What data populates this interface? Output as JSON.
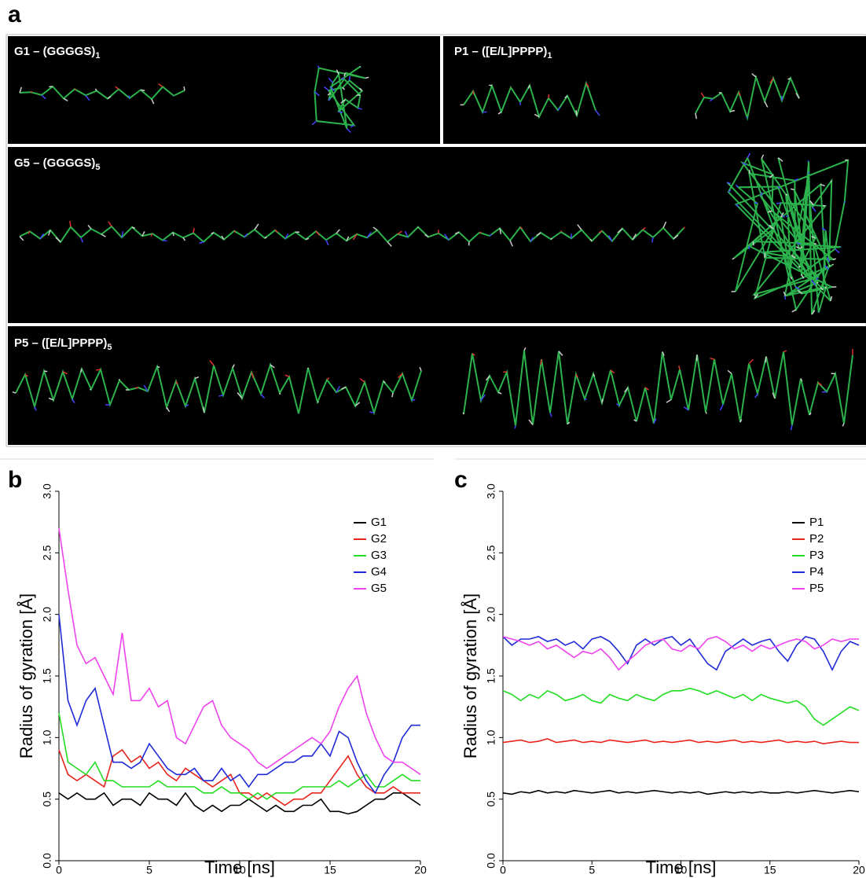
{
  "panel_a": {
    "label": "a",
    "images": [
      {
        "title": "G1 – (GGGGS)",
        "subscript": "1"
      },
      {
        "title": "P1 – ([E/L]PPPP)",
        "subscript": "1"
      },
      {
        "title": "G5 – (GGGGS)",
        "subscript": "5"
      },
      {
        "title": "P5 – ([E/L]PPPP)",
        "subscript": "5"
      }
    ]
  },
  "chart_data": [
    {
      "type": "line",
      "panel_label": "b",
      "xlabel": "Time [ns]",
      "ylabel": "Radius of gyration [Å]",
      "xlim": [
        0,
        20
      ],
      "xticks": [
        0,
        5,
        10,
        15,
        20
      ],
      "ylim": [
        0,
        3
      ],
      "yticks": [
        {
          "value": 0,
          "label": "0.0"
        },
        {
          "value": 0.5,
          "label": "0.5"
        },
        {
          "value": 1,
          "label": "1.0"
        },
        {
          "value": 1.5,
          "label": "1.5"
        },
        {
          "value": 2,
          "label": "2.0"
        },
        {
          "value": 2.5,
          "label": "2.5"
        },
        {
          "value": 3,
          "label": "3.0"
        }
      ],
      "legend": "upper right",
      "x": [
        0,
        0.5,
        1,
        1.5,
        2,
        2.5,
        3,
        3.5,
        4,
        4.5,
        5,
        5.5,
        6,
        6.5,
        7,
        7.5,
        8,
        8.5,
        9,
        9.5,
        10,
        10.5,
        11,
        11.5,
        12,
        12.5,
        13,
        13.5,
        14,
        14.5,
        15,
        15.5,
        16,
        16.5,
        17,
        17.5,
        18,
        18.5,
        19,
        19.5,
        20
      ],
      "series": [
        {
          "name": "G1",
          "color": "#000000",
          "values": [
            0.55,
            0.5,
            0.55,
            0.5,
            0.5,
            0.55,
            0.45,
            0.5,
            0.5,
            0.45,
            0.55,
            0.5,
            0.5,
            0.45,
            0.55,
            0.45,
            0.4,
            0.45,
            0.4,
            0.45,
            0.45,
            0.5,
            0.45,
            0.4,
            0.45,
            0.4,
            0.4,
            0.45,
            0.45,
            0.5,
            0.4,
            0.4,
            0.38,
            0.4,
            0.45,
            0.5,
            0.5,
            0.55,
            0.55,
            0.5,
            0.45
          ]
        },
        {
          "name": "G2",
          "color": "#e8241c",
          "values": [
            0.9,
            0.7,
            0.65,
            0.7,
            0.65,
            0.6,
            0.85,
            0.9,
            0.8,
            0.85,
            0.75,
            0.8,
            0.7,
            0.65,
            0.75,
            0.7,
            0.65,
            0.6,
            0.65,
            0.7,
            0.55,
            0.55,
            0.5,
            0.55,
            0.5,
            0.45,
            0.5,
            0.5,
            0.55,
            0.55,
            0.65,
            0.75,
            0.85,
            0.7,
            0.6,
            0.55,
            0.55,
            0.6,
            0.55,
            0.55,
            0.55
          ]
        },
        {
          "name": "G3",
          "color": "#22dd22",
          "values": [
            1.2,
            0.8,
            0.75,
            0.7,
            0.8,
            0.65,
            0.65,
            0.6,
            0.6,
            0.6,
            0.6,
            0.65,
            0.6,
            0.6,
            0.6,
            0.6,
            0.55,
            0.55,
            0.6,
            0.55,
            0.55,
            0.5,
            0.55,
            0.5,
            0.55,
            0.55,
            0.55,
            0.6,
            0.6,
            0.6,
            0.6,
            0.65,
            0.6,
            0.65,
            0.7,
            0.6,
            0.6,
            0.65,
            0.7,
            0.65,
            0.65
          ]
        },
        {
          "name": "G4",
          "color": "#1f2bd6",
          "values": [
            2.0,
            1.3,
            1.1,
            1.3,
            1.4,
            1.1,
            0.8,
            0.8,
            0.75,
            0.8,
            0.95,
            0.85,
            0.75,
            0.7,
            0.7,
            0.75,
            0.65,
            0.65,
            0.75,
            0.65,
            0.7,
            0.6,
            0.7,
            0.7,
            0.75,
            0.8,
            0.8,
            0.85,
            0.85,
            0.95,
            0.85,
            1.05,
            1.0,
            0.8,
            0.65,
            0.55,
            0.7,
            0.8,
            1.0,
            1.1,
            1.1
          ]
        },
        {
          "name": "G5",
          "color": "#ee44ee",
          "values": [
            2.7,
            2.2,
            1.75,
            1.6,
            1.65,
            1.5,
            1.35,
            1.85,
            1.3,
            1.3,
            1.4,
            1.25,
            1.3,
            1.0,
            0.95,
            1.1,
            1.25,
            1.3,
            1.1,
            1.0,
            0.95,
            0.9,
            0.8,
            0.75,
            0.8,
            0.85,
            0.9,
            0.95,
            1.0,
            0.95,
            1.05,
            1.25,
            1.4,
            1.5,
            1.2,
            1.0,
            0.85,
            0.8,
            0.8,
            0.75,
            0.7
          ]
        }
      ]
    },
    {
      "type": "line",
      "panel_label": "c",
      "xlabel": "Time [ns]",
      "ylabel": "Radius of gyration [Å]",
      "xlim": [
        0,
        20
      ],
      "xticks": [
        0,
        5,
        10,
        15,
        20
      ],
      "ylim": [
        0,
        3
      ],
      "yticks": [
        {
          "value": 0,
          "label": "0.0"
        },
        {
          "value": 0.5,
          "label": "0.5"
        },
        {
          "value": 1,
          "label": "1.0"
        },
        {
          "value": 1.5,
          "label": "1.5"
        },
        {
          "value": 2,
          "label": "2.0"
        },
        {
          "value": 2.5,
          "label": "2.5"
        },
        {
          "value": 3,
          "label": "3.0"
        }
      ],
      "legend": "upper right",
      "x": [
        0,
        0.5,
        1,
        1.5,
        2,
        2.5,
        3,
        3.5,
        4,
        4.5,
        5,
        5.5,
        6,
        6.5,
        7,
        7.5,
        8,
        8.5,
        9,
        9.5,
        10,
        10.5,
        11,
        11.5,
        12,
        12.5,
        13,
        13.5,
        14,
        14.5,
        15,
        15.5,
        16,
        16.5,
        17,
        17.5,
        18,
        18.5,
        19,
        19.5,
        20
      ],
      "series": [
        {
          "name": "P1",
          "color": "#000000",
          "values": [
            0.55,
            0.54,
            0.56,
            0.55,
            0.57,
            0.55,
            0.56,
            0.55,
            0.57,
            0.56,
            0.55,
            0.56,
            0.57,
            0.55,
            0.56,
            0.55,
            0.56,
            0.57,
            0.56,
            0.55,
            0.56,
            0.55,
            0.56,
            0.54,
            0.55,
            0.56,
            0.55,
            0.56,
            0.55,
            0.56,
            0.55,
            0.55,
            0.56,
            0.55,
            0.56,
            0.57,
            0.56,
            0.55,
            0.56,
            0.57,
            0.56
          ]
        },
        {
          "name": "P2",
          "color": "#e8241c",
          "values": [
            0.96,
            0.97,
            0.98,
            0.96,
            0.97,
            0.99,
            0.96,
            0.97,
            0.98,
            0.96,
            0.97,
            0.96,
            0.98,
            0.97,
            0.96,
            0.97,
            0.98,
            0.96,
            0.97,
            0.96,
            0.97,
            0.98,
            0.96,
            0.97,
            0.96,
            0.97,
            0.98,
            0.96,
            0.97,
            0.96,
            0.97,
            0.98,
            0.96,
            0.97,
            0.96,
            0.97,
            0.95,
            0.96,
            0.97,
            0.96,
            0.96
          ]
        },
        {
          "name": "P3",
          "color": "#22dd22",
          "values": [
            1.38,
            1.35,
            1.3,
            1.35,
            1.32,
            1.38,
            1.35,
            1.3,
            1.32,
            1.35,
            1.3,
            1.28,
            1.35,
            1.32,
            1.3,
            1.35,
            1.32,
            1.3,
            1.35,
            1.38,
            1.38,
            1.4,
            1.38,
            1.35,
            1.38,
            1.35,
            1.32,
            1.35,
            1.3,
            1.35,
            1.32,
            1.3,
            1.28,
            1.3,
            1.25,
            1.15,
            1.1,
            1.15,
            1.2,
            1.25,
            1.22
          ]
        },
        {
          "name": "P4",
          "color": "#1f2bd6",
          "values": [
            1.82,
            1.75,
            1.8,
            1.8,
            1.82,
            1.78,
            1.8,
            1.75,
            1.78,
            1.72,
            1.8,
            1.82,
            1.78,
            1.7,
            1.6,
            1.75,
            1.8,
            1.75,
            1.8,
            1.82,
            1.75,
            1.8,
            1.7,
            1.6,
            1.55,
            1.7,
            1.75,
            1.8,
            1.75,
            1.78,
            1.8,
            1.7,
            1.62,
            1.75,
            1.82,
            1.8,
            1.7,
            1.55,
            1.7,
            1.78,
            1.75
          ]
        },
        {
          "name": "P5",
          "color": "#ee44ee",
          "values": [
            1.82,
            1.8,
            1.78,
            1.75,
            1.78,
            1.72,
            1.75,
            1.7,
            1.65,
            1.7,
            1.68,
            1.72,
            1.65,
            1.55,
            1.62,
            1.68,
            1.75,
            1.78,
            1.8,
            1.72,
            1.7,
            1.75,
            1.72,
            1.8,
            1.82,
            1.78,
            1.72,
            1.75,
            1.7,
            1.75,
            1.72,
            1.75,
            1.78,
            1.8,
            1.78,
            1.72,
            1.75,
            1.8,
            1.78,
            1.8,
            1.8
          ]
        }
      ]
    }
  ]
}
